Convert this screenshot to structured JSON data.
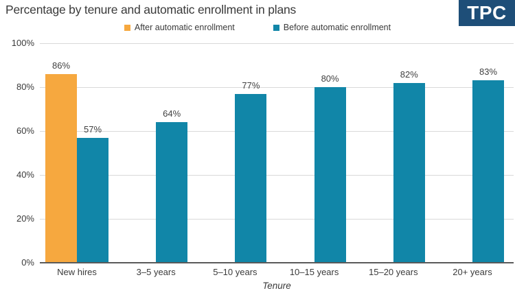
{
  "title": "Percentage by tenure and automatic enrollment in plans",
  "logo": {
    "text": "TPC"
  },
  "colors": {
    "after": "#f6a83f",
    "before": "#1186a8",
    "logo_bg": "#1e4e78",
    "grid": "#d9d9d9",
    "axis": "#595959",
    "text": "#3a3a3a"
  },
  "legend": [
    {
      "label": "After automatic enrollment",
      "color_key": "after"
    },
    {
      "label": "Before automatic enrollment",
      "color_key": "before"
    }
  ],
  "chart_data": {
    "type": "bar",
    "categories": [
      "New hires",
      "3–5 years",
      "5–10 years",
      "10–15 years",
      "15–20 years",
      "20+ years"
    ],
    "series": [
      {
        "name": "After automatic enrollment",
        "color_key": "after",
        "values": [
          86,
          null,
          null,
          null,
          null,
          null
        ]
      },
      {
        "name": "Before automatic enrollment",
        "color_key": "before",
        "values": [
          57,
          64,
          77,
          80,
          82,
          83
        ]
      }
    ],
    "data_labels": [
      [
        "86%",
        "57%"
      ],
      [
        "64%"
      ],
      [
        "77%"
      ],
      [
        "80%"
      ],
      [
        "82%"
      ],
      [
        "83%"
      ]
    ],
    "ylim": [
      0,
      100
    ],
    "yticks": [
      100,
      80,
      60,
      40,
      20,
      0
    ],
    "ytick_format": "percent",
    "xlabel": "Tenure",
    "grid": "horizontal",
    "legend_position": "top"
  }
}
